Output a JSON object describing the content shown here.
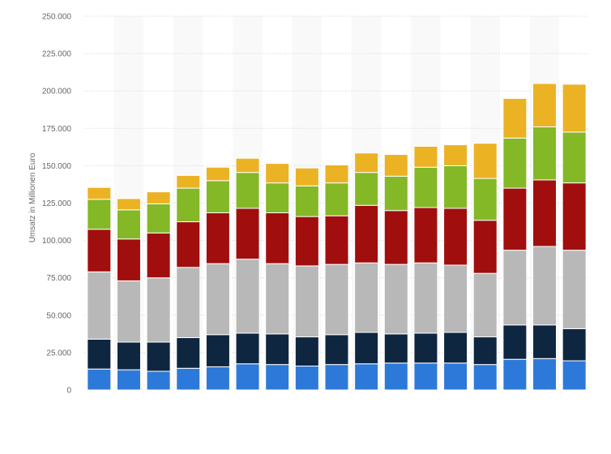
{
  "chart_data": {
    "type": "bar",
    "stacked": true,
    "ylabel": "Umsatz in Millionen Euro",
    "ylim": [
      0,
      250000
    ],
    "yticks": [
      0,
      25000,
      50000,
      75000,
      100000,
      125000,
      150000,
      175000,
      200000,
      225000,
      250000
    ],
    "ytick_labels": [
      "0",
      "25.000",
      "50.000",
      "75.000",
      "100.000",
      "125.000",
      "150.000",
      "175.000",
      "200.000",
      "225.000",
      "250.000"
    ],
    "grid": true,
    "legend": "none",
    "categories": [
      "",
      "",
      "",
      "",
      "",
      "",
      "",
      "",
      "",
      "",
      "",
      "",
      "",
      "",
      "",
      "",
      ""
    ],
    "series": [
      {
        "color": "#2d79d9",
        "values": [
          14000,
          13500,
          12500,
          14500,
          15500,
          17500,
          17000,
          16000,
          17000,
          17500,
          18000,
          18000,
          18000,
          17000,
          20500,
          21000,
          19500
        ]
      },
      {
        "color": "#0f2640",
        "values": [
          20000,
          18500,
          19500,
          20500,
          21500,
          20500,
          20500,
          19500,
          20000,
          21000,
          19500,
          20000,
          20500,
          18500,
          23000,
          22500,
          21500
        ]
      },
      {
        "color": "#b8b8b8",
        "values": [
          45000,
          41000,
          43000,
          47000,
          47500,
          49500,
          47000,
          47500,
          47000,
          46500,
          46500,
          47000,
          45000,
          42500,
          50000,
          52500,
          52500
        ]
      },
      {
        "color": "#a10e0e",
        "values": [
          28500,
          28000,
          30000,
          30500,
          34000,
          34000,
          34000,
          33000,
          32500,
          38500,
          36000,
          37000,
          38000,
          35500,
          41500,
          44500,
          45000
        ]
      },
      {
        "color": "#84b826",
        "values": [
          20000,
          19500,
          19500,
          22500,
          21500,
          24000,
          20000,
          20500,
          22000,
          22000,
          23000,
          27000,
          28500,
          28000,
          33500,
          35500,
          34000
        ]
      },
      {
        "color": "#ebb223",
        "values": [
          8000,
          7500,
          8000,
          8500,
          9000,
          9500,
          13000,
          12000,
          12000,
          13000,
          14500,
          14000,
          14000,
          23500,
          26500,
          29000,
          32000
        ]
      }
    ]
  }
}
